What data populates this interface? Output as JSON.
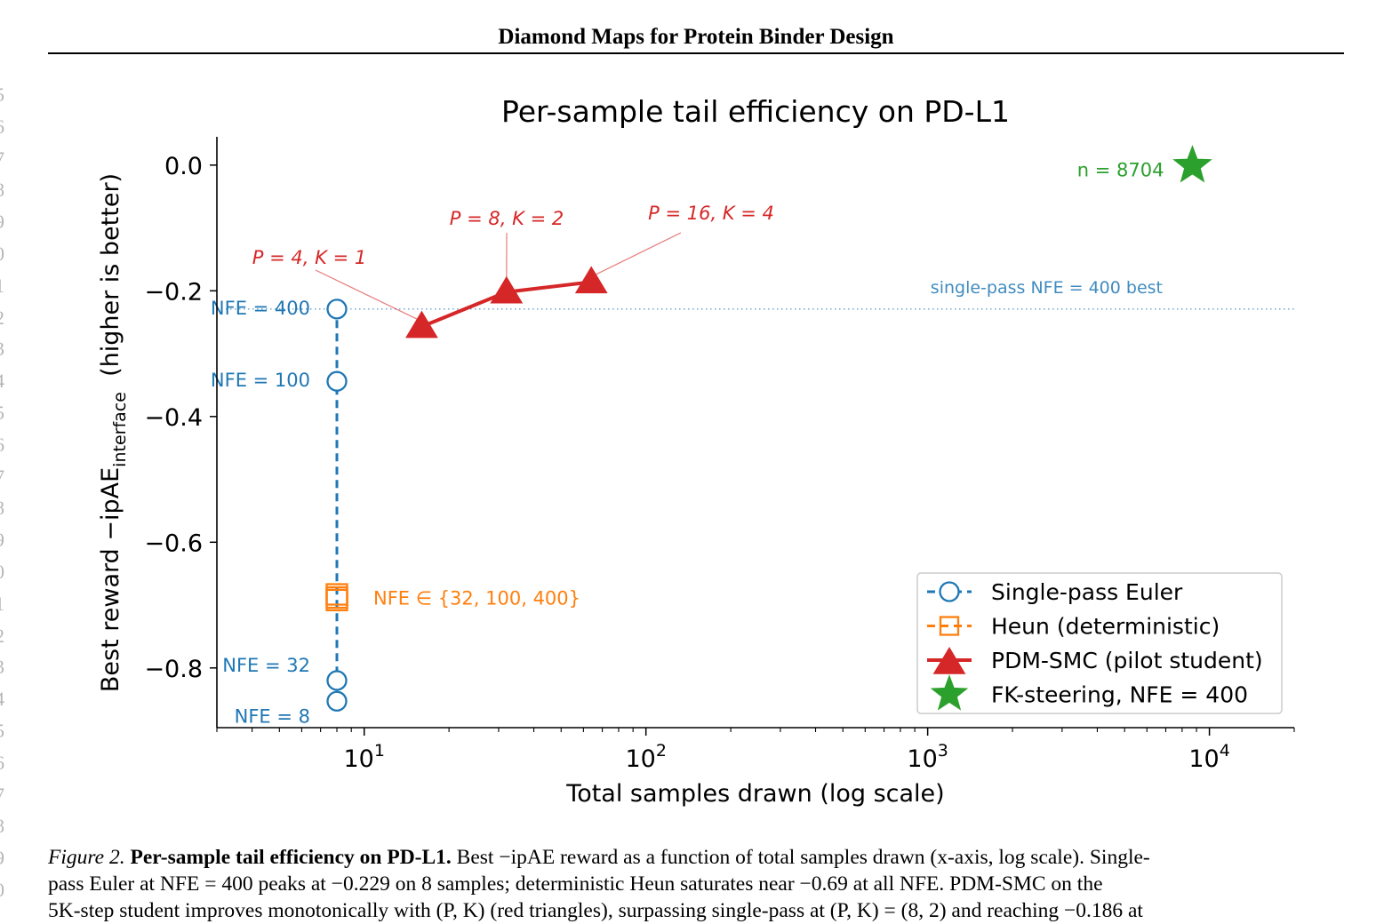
{
  "page": {
    "running_head": "Diamond Maps for Protein Binder Design",
    "line_numbers": [
      "5",
      "6",
      "7",
      "8",
      "9",
      "0",
      "1",
      "2",
      "3",
      "4",
      "5",
      "6",
      "7",
      "8",
      "9",
      "0",
      "1",
      "2",
      "3",
      "4",
      "5",
      "6",
      "7",
      "8",
      "9",
      "0"
    ]
  },
  "chart_data": {
    "type": "scatter",
    "title": "Per-sample tail efficiency on PD-L1",
    "xlabel": "Total samples drawn (log scale)",
    "ylabel_main": "Best reward −ipAE",
    "ylabel_sub": "interface",
    "ylabel_tail": "  (higher is better)",
    "x_scale": "log",
    "xlim": [
      3.0,
      20000
    ],
    "ylim": [
      -0.895,
      0.045
    ],
    "x_ticks": [
      {
        "value": 10,
        "base": "10",
        "exp": "1"
      },
      {
        "value": 100,
        "base": "10",
        "exp": "2"
      },
      {
        "value": 1000,
        "base": "10",
        "exp": "3"
      },
      {
        "value": 10000,
        "base": "10",
        "exp": "4"
      }
    ],
    "y_ticks": [
      {
        "value": 0.0,
        "label": "0.0"
      },
      {
        "value": -0.2,
        "label": "−0.2"
      },
      {
        "value": -0.4,
        "label": "−0.4"
      },
      {
        "value": -0.6,
        "label": "−0.6"
      },
      {
        "value": -0.8,
        "label": "−0.8"
      }
    ],
    "series": [
      {
        "name": "Single-pass Euler",
        "color": "#1f77b4",
        "marker": "circle",
        "line": "dashed",
        "points": [
          {
            "x": 8,
            "y": -0.853,
            "label": "NFE = 8"
          },
          {
            "x": 8,
            "y": -0.82,
            "label": "NFE = 32"
          },
          {
            "x": 8,
            "y": -0.344,
            "label": "NFE = 100"
          },
          {
            "x": 8,
            "y": -0.229,
            "label": "NFE = 400"
          }
        ]
      },
      {
        "name": "Heun (deterministic)",
        "color": "#ff7f0e",
        "marker": "square",
        "line": "dashed",
        "points": [
          {
            "x": 8,
            "y": -0.683
          },
          {
            "x": 8,
            "y": -0.688
          },
          {
            "x": 8,
            "y": -0.692
          }
        ],
        "annotation": "NFE ∈ {32, 100, 400}"
      },
      {
        "name": "PDM-SMC (pilot student)",
        "color": "#d62728",
        "marker": "triangle",
        "line": "solid",
        "points": [
          {
            "x": 16,
            "y": -0.257,
            "label": "P = 4, K = 1"
          },
          {
            "x": 32,
            "y": -0.202,
            "label": "P = 8, K = 2"
          },
          {
            "x": 64,
            "y": -0.186,
            "label": "P = 16, K = 4"
          }
        ]
      },
      {
        "name": "FK-steering, NFE = 400",
        "color": "#2ca02c",
        "marker": "star",
        "line": "none",
        "points": [
          {
            "x": 8704,
            "y": -0.001,
            "label": "n = 8704"
          }
        ]
      }
    ],
    "reference_line": {
      "y": -0.229,
      "label": "single-pass NFE = 400 best",
      "color": "#1f77b4",
      "style": "dotted"
    },
    "legend": {
      "placement": "lower-right"
    },
    "grid": false
  },
  "caption": {
    "fig_label": "Figure 2.",
    "bold_title": "Per-sample tail efficiency on PD-L1.",
    "line1_rest": "Best −ipAE reward as a function of total samples drawn (x-axis, log scale). Single-",
    "line2": "pass Euler at NFE = 400 peaks at −0.229 on 8 samples; deterministic Heun saturates near −0.69 at all NFE. PDM-SMC on the",
    "line3": "5K-step student improves monotonically with (P, K) (red triangles), surpassing single-pass at (P, K) = (8, 2) and reaching −0.186 at"
  }
}
